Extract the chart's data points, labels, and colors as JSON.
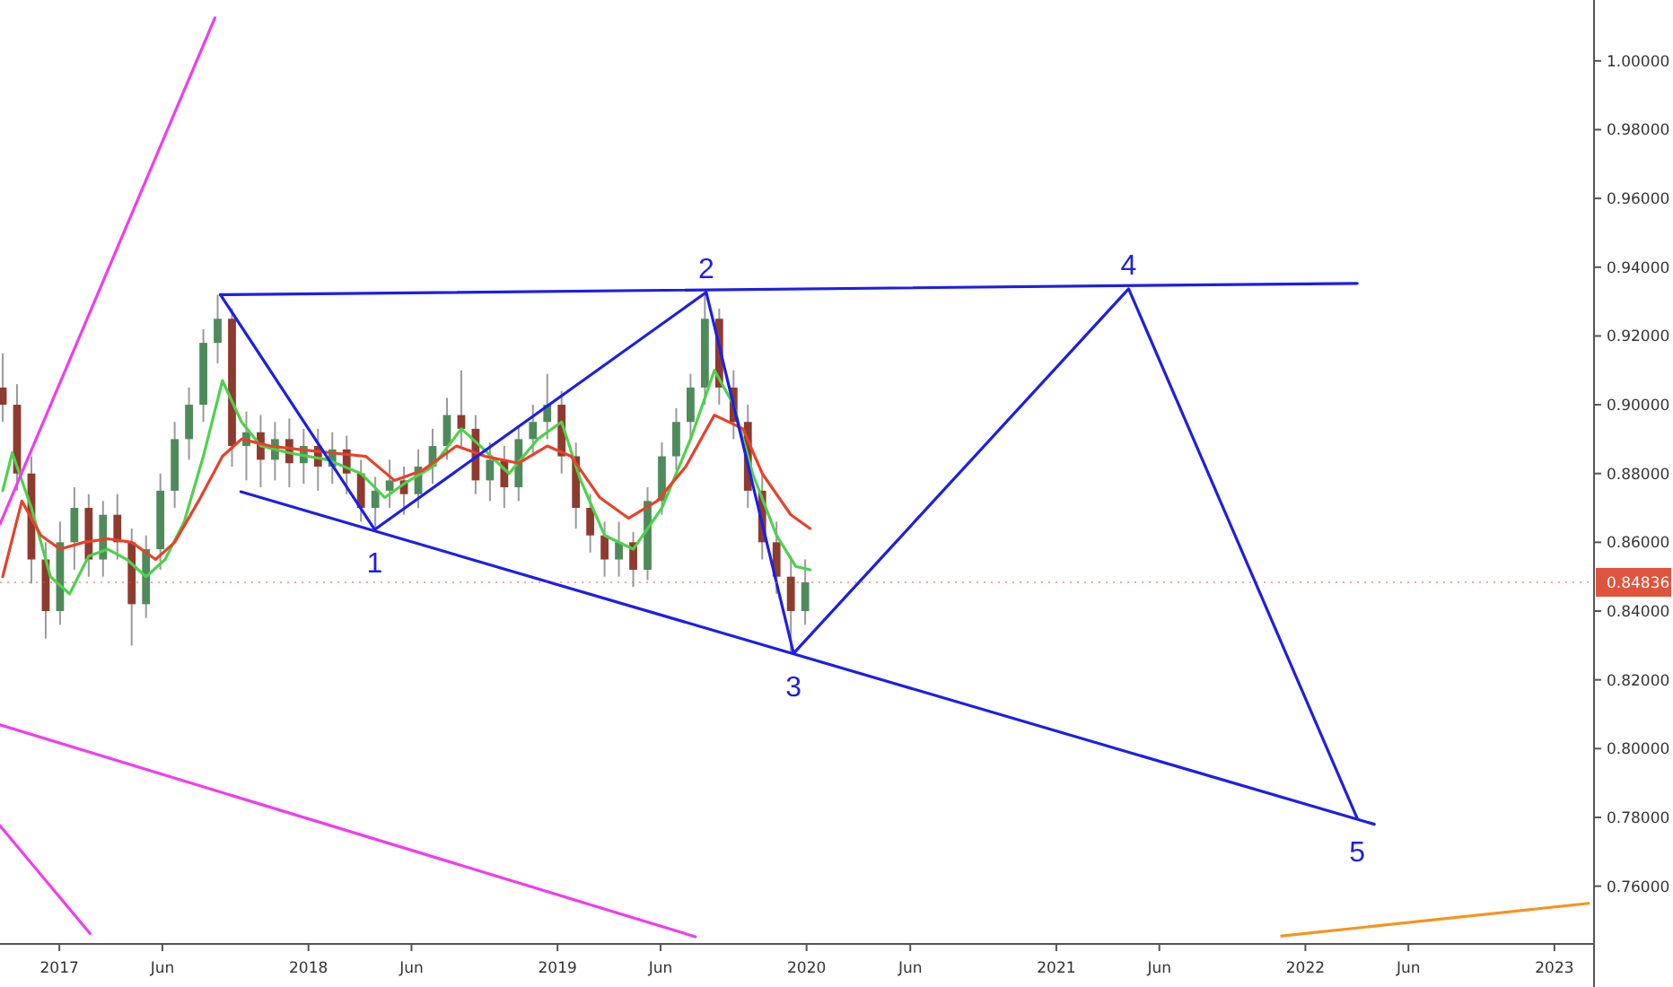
{
  "chart_data": {
    "type": "candlestick",
    "x": [
      "2016-10-10",
      "2016-10-31",
      "2016-11-21",
      "2016-12-12",
      "2017-01-02",
      "2017-01-23",
      "2017-02-13",
      "2017-03-06",
      "2017-03-27",
      "2017-04-17",
      "2017-05-08",
      "2017-05-29",
      "2017-06-19",
      "2017-07-10",
      "2017-07-31",
      "2017-08-21",
      "2017-09-11",
      "2017-10-02",
      "2017-10-23",
      "2017-11-13",
      "2017-12-04",
      "2017-12-25",
      "2018-01-15",
      "2018-02-05",
      "2018-02-26",
      "2018-03-19",
      "2018-04-09",
      "2018-04-30",
      "2018-05-21",
      "2018-06-11",
      "2018-07-02",
      "2018-07-23",
      "2018-08-13",
      "2018-09-03",
      "2018-09-24",
      "2018-10-15",
      "2018-11-05",
      "2018-11-26",
      "2018-12-17",
      "2019-01-07",
      "2019-01-28",
      "2019-02-18",
      "2019-03-11",
      "2019-04-01",
      "2019-04-22",
      "2019-05-13",
      "2019-06-03",
      "2019-06-24",
      "2019-07-15",
      "2019-08-05",
      "2019-08-26",
      "2019-09-16",
      "2019-10-07",
      "2019-10-28",
      "2019-11-18",
      "2019-12-09",
      "2019-12-30"
    ],
    "ohlc": [
      [
        0.905,
        0.915,
        0.895,
        0.9
      ],
      [
        0.9,
        0.906,
        0.875,
        0.88
      ],
      [
        0.88,
        0.885,
        0.848,
        0.855
      ],
      [
        0.855,
        0.86,
        0.832,
        0.84
      ],
      [
        0.84,
        0.866,
        0.836,
        0.86
      ],
      [
        0.86,
        0.876,
        0.852,
        0.87
      ],
      [
        0.87,
        0.874,
        0.85,
        0.855
      ],
      [
        0.855,
        0.872,
        0.85,
        0.868
      ],
      [
        0.868,
        0.874,
        0.855,
        0.86
      ],
      [
        0.86,
        0.864,
        0.83,
        0.842
      ],
      [
        0.842,
        0.862,
        0.838,
        0.858
      ],
      [
        0.858,
        0.88,
        0.852,
        0.875
      ],
      [
        0.875,
        0.895,
        0.87,
        0.89
      ],
      [
        0.89,
        0.905,
        0.884,
        0.9
      ],
      [
        0.9,
        0.922,
        0.895,
        0.918
      ],
      [
        0.918,
        0.932,
        0.912,
        0.925
      ],
      [
        0.925,
        0.928,
        0.882,
        0.888
      ],
      [
        0.888,
        0.898,
        0.878,
        0.892
      ],
      [
        0.892,
        0.897,
        0.876,
        0.884
      ],
      [
        0.884,
        0.895,
        0.878,
        0.89
      ],
      [
        0.89,
        0.896,
        0.876,
        0.883
      ],
      [
        0.883,
        0.893,
        0.877,
        0.888
      ],
      [
        0.888,
        0.893,
        0.875,
        0.882
      ],
      [
        0.882,
        0.892,
        0.877,
        0.887
      ],
      [
        0.887,
        0.891,
        0.874,
        0.88
      ],
      [
        0.88,
        0.884,
        0.866,
        0.87
      ],
      [
        0.87,
        0.879,
        0.863,
        0.875
      ],
      [
        0.875,
        0.884,
        0.87,
        0.878
      ],
      [
        0.878,
        0.882,
        0.868,
        0.874
      ],
      [
        0.874,
        0.887,
        0.87,
        0.882
      ],
      [
        0.882,
        0.893,
        0.877,
        0.888
      ],
      [
        0.888,
        0.902,
        0.884,
        0.897
      ],
      [
        0.897,
        0.91,
        0.888,
        0.893
      ],
      [
        0.893,
        0.897,
        0.874,
        0.878
      ],
      [
        0.878,
        0.889,
        0.872,
        0.884
      ],
      [
        0.884,
        0.888,
        0.87,
        0.876
      ],
      [
        0.876,
        0.894,
        0.872,
        0.89
      ],
      [
        0.89,
        0.9,
        0.886,
        0.895
      ],
      [
        0.895,
        0.909,
        0.89,
        0.9
      ],
      [
        0.9,
        0.904,
        0.88,
        0.885
      ],
      [
        0.885,
        0.889,
        0.864,
        0.87
      ],
      [
        0.87,
        0.874,
        0.857,
        0.862
      ],
      [
        0.862,
        0.866,
        0.85,
        0.855
      ],
      [
        0.855,
        0.866,
        0.85,
        0.86
      ],
      [
        0.86,
        0.863,
        0.847,
        0.852
      ],
      [
        0.852,
        0.876,
        0.849,
        0.872
      ],
      [
        0.872,
        0.889,
        0.868,
        0.885
      ],
      [
        0.885,
        0.899,
        0.881,
        0.895
      ],
      [
        0.895,
        0.909,
        0.89,
        0.905
      ],
      [
        0.905,
        0.933,
        0.9,
        0.925
      ],
      [
        0.925,
        0.928,
        0.9,
        0.905
      ],
      [
        0.905,
        0.91,
        0.89,
        0.895
      ],
      [
        0.895,
        0.9,
        0.87,
        0.875
      ],
      [
        0.875,
        0.88,
        0.855,
        0.86
      ],
      [
        0.86,
        0.866,
        0.845,
        0.85
      ],
      [
        0.85,
        0.856,
        0.828,
        0.84
      ],
      [
        0.84,
        0.855,
        0.836,
        0.84836
      ]
    ],
    "series": [
      {
        "type": "line",
        "color": "#4cd24c",
        "x": [
          "2016-10-10",
          "2016-10-24",
          "2016-11-21",
          "2016-12-19",
          "2017-01-16",
          "2017-02-13",
          "2017-03-13",
          "2017-04-10",
          "2017-05-08",
          "2017-06-05",
          "2017-07-03",
          "2017-07-31",
          "2017-08-28",
          "2017-09-25",
          "2017-10-23",
          "2017-12-04",
          "2018-01-29",
          "2018-03-19",
          "2018-04-23",
          "2018-05-21",
          "2018-07-02",
          "2018-08-13",
          "2018-09-10",
          "2018-10-22",
          "2018-12-03",
          "2019-01-07",
          "2019-02-04",
          "2019-03-11",
          "2019-04-22",
          "2019-06-03",
          "2019-07-15",
          "2019-08-19",
          "2019-09-16",
          "2019-10-14",
          "2019-11-18",
          "2019-12-16",
          "2020-01-06"
        ],
        "values": [
          0.875,
          0.886,
          0.87,
          0.85,
          0.845,
          0.856,
          0.858,
          0.855,
          0.85,
          0.855,
          0.866,
          0.885,
          0.907,
          0.895,
          0.888,
          0.886,
          0.884,
          0.88,
          0.873,
          0.877,
          0.882,
          0.893,
          0.888,
          0.88,
          0.89,
          0.895,
          0.878,
          0.862,
          0.858,
          0.87,
          0.89,
          0.91,
          0.9,
          0.88,
          0.862,
          0.853,
          0.852
        ]
      },
      {
        "type": "line",
        "color": "#e8412c",
        "x": [
          "2016-10-10",
          "2016-11-07",
          "2016-12-05",
          "2017-01-02",
          "2017-02-06",
          "2017-03-13",
          "2017-04-17",
          "2017-05-22",
          "2017-06-19",
          "2017-07-24",
          "2017-08-28",
          "2017-09-25",
          "2017-11-06",
          "2017-12-18",
          "2018-02-05",
          "2018-03-26",
          "2018-05-07",
          "2018-06-18",
          "2018-08-06",
          "2018-09-17",
          "2018-11-05",
          "2018-12-17",
          "2019-01-21",
          "2019-03-04",
          "2019-04-15",
          "2019-05-27",
          "2019-07-08",
          "2019-08-19",
          "2019-09-30",
          "2019-10-28",
          "2019-12-09",
          "2020-01-06"
        ],
        "values": [
          0.85,
          0.872,
          0.862,
          0.858,
          0.86,
          0.861,
          0.86,
          0.855,
          0.86,
          0.872,
          0.885,
          0.89,
          0.888,
          0.887,
          0.886,
          0.885,
          0.878,
          0.881,
          0.888,
          0.885,
          0.883,
          0.888,
          0.885,
          0.873,
          0.867,
          0.872,
          0.882,
          0.897,
          0.893,
          0.88,
          0.868,
          0.864
        ]
      },
      {
        "type": "line",
        "color": "#1e1ee6",
        "x": [
          "2017-08-25",
          "2018-04-08",
          "2019-08-07",
          "2019-12-13",
          "2021-04-17",
          "2022-03-18"
        ],
        "values": [
          0.932,
          0.8637,
          0.9327,
          0.8277,
          0.9337,
          0.7797
        ]
      },
      {
        "type": "line",
        "color": "#1e1ee6",
        "x": [
          "2017-08-25",
          "2022-03-18"
        ],
        "values": [
          0.932,
          0.9353
        ]
      },
      {
        "type": "line",
        "color": "#1e1ee6",
        "x": [
          "2017-09-24",
          "2022-04-12"
        ],
        "values": [
          0.8747,
          0.778
        ]
      },
      {
        "type": "line",
        "color": "#f03cf0",
        "x": [
          "2016-10-06",
          "2017-08-17"
        ],
        "values": [
          0.8653,
          1.0125
        ]
      },
      {
        "type": "line",
        "color": "#f03cf0",
        "x": [
          "2016-10-06",
          "2019-07-22"
        ],
        "values": [
          0.8069,
          0.7453
        ]
      },
      {
        "type": "line",
        "color": "#f03cf0",
        "x": [
          "2016-10-06",
          "2017-02-15"
        ],
        "values": [
          0.7776,
          0.7462
        ]
      },
      {
        "type": "line",
        "color": "#f7931e",
        "x": [
          "2021-11-27",
          "2023-02-20"
        ],
        "values": [
          0.7455,
          0.755
        ]
      }
    ],
    "annotations": [
      {
        "text": "1",
        "x": "2018-04-08",
        "y": 0.8637
      },
      {
        "text": "2",
        "x": "2019-08-07",
        "y": 0.9327
      },
      {
        "text": "3",
        "x": "2019-12-13",
        "y": 0.8277
      },
      {
        "text": "4",
        "x": "2021-04-17",
        "y": 0.9337
      },
      {
        "text": "5",
        "x": "2022-03-18",
        "y": 0.7797
      }
    ],
    "ref_lines": [
      {
        "axis": "y",
        "value": 0.84836,
        "label": "0.84836",
        "color": "#e0533d"
      }
    ],
    "xlim": [
      "2016-10-06",
      "2023-02-28"
    ],
    "xticks": [
      {
        "value": "2017-01-01",
        "label": "2017"
      },
      {
        "value": "2017-06-01",
        "label": "Jun"
      },
      {
        "value": "2018-01-01",
        "label": "2018"
      },
      {
        "value": "2018-06-01",
        "label": "Jun"
      },
      {
        "value": "2019-01-01",
        "label": "2019"
      },
      {
        "value": "2019-06-01",
        "label": "Jun"
      },
      {
        "value": "2020-01-01",
        "label": "2020"
      },
      {
        "value": "2020-06-01",
        "label": "Jun"
      },
      {
        "value": "2021-01-01",
        "label": "2021"
      },
      {
        "value": "2021-06-01",
        "label": "Jun"
      },
      {
        "value": "2022-01-01",
        "label": "2022"
      },
      {
        "value": "2022-06-01",
        "label": "Jun"
      },
      {
        "value": "2023-01-01",
        "label": "2023"
      }
    ],
    "ylim": [
      0.7432,
      1.0177
    ],
    "yticks": [
      {
        "value": 0.76,
        "label": "0.76000"
      },
      {
        "value": 0.78,
        "label": "0.78000"
      },
      {
        "value": 0.8,
        "label": "0.80000"
      },
      {
        "value": 0.82,
        "label": "0.82000"
      },
      {
        "value": 0.84,
        "label": "0.84000"
      },
      {
        "value": 0.86,
        "label": "0.86000"
      },
      {
        "value": 0.88,
        "label": "0.88000"
      },
      {
        "value": 0.9,
        "label": "0.90000"
      },
      {
        "value": 0.92,
        "label": "0.92000"
      },
      {
        "value": 0.94,
        "label": "0.94000"
      },
      {
        "value": 0.96,
        "label": "0.96000"
      },
      {
        "value": 0.98,
        "label": "0.98000"
      },
      {
        "value": 1,
        "label": "1.00000"
      }
    ],
    "grid": false
  }
}
